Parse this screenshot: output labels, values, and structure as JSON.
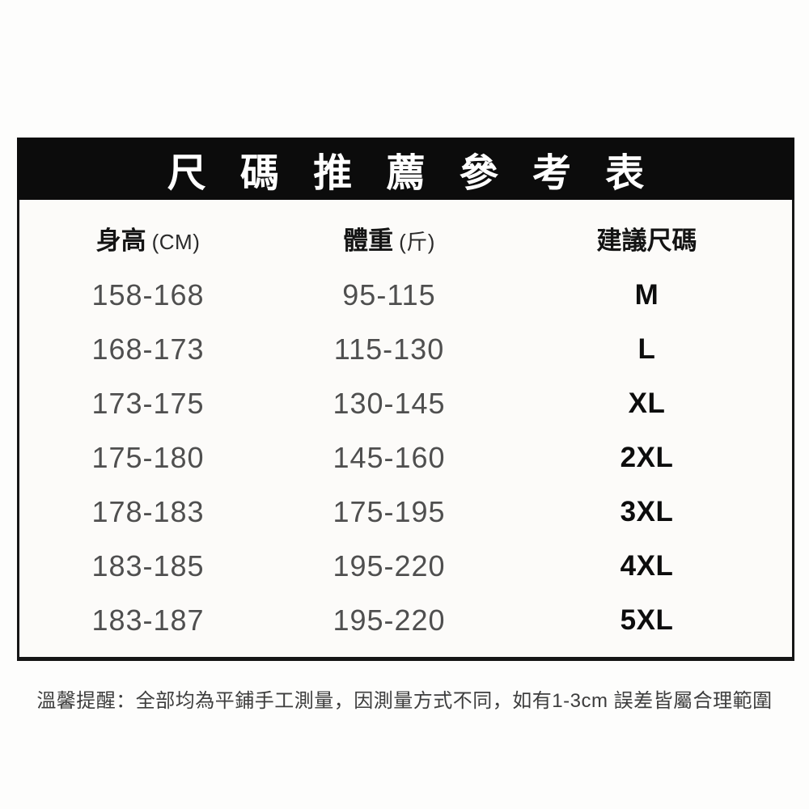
{
  "page": {
    "title": "尺碼推薦參考表",
    "columns": [
      {
        "label": "身高",
        "unit": "(CM)"
      },
      {
        "label": "體重",
        "unit": "(斤)"
      },
      {
        "label": "建議尺碼",
        "unit": ""
      }
    ],
    "rows": [
      {
        "height": "158-168",
        "weight": "95-115",
        "size": "M"
      },
      {
        "height": "168-173",
        "weight": "115-130",
        "size": "L"
      },
      {
        "height": "173-175",
        "weight": "130-145",
        "size": "XL"
      },
      {
        "height": "175-180",
        "weight": "145-160",
        "size": "2XL"
      },
      {
        "height": "178-183",
        "weight": "175-195",
        "size": "3XL"
      },
      {
        "height": "183-185",
        "weight": "195-220",
        "size": "4XL"
      },
      {
        "height": "183-187",
        "weight": "195-220",
        "size": "5XL"
      }
    ],
    "footer_note": "溫馨提醒：全部均為平鋪手工測量，因測量方式不同，如有1-3cm 誤差皆屬合理範圍",
    "colors": {
      "page_bg": "#fdfdfc",
      "banner_bg": "#0c0c0c",
      "banner_text": "#ffffff",
      "frame_border": "#161616",
      "value_text": "#4f4f4f",
      "size_text": "#0d0d0d",
      "note_text": "#3d3d3d"
    }
  },
  "chart_data": {
    "type": "table",
    "title": "尺碼推薦參考表",
    "columns": [
      "身高 (CM)",
      "體重 (斤)",
      "建議尺碼"
    ],
    "rows": [
      [
        "158-168",
        "95-115",
        "M"
      ],
      [
        "168-173",
        "115-130",
        "L"
      ],
      [
        "173-175",
        "130-145",
        "XL"
      ],
      [
        "175-180",
        "145-160",
        "2XL"
      ],
      [
        "178-183",
        "175-195",
        "3XL"
      ],
      [
        "183-185",
        "195-220",
        "4XL"
      ],
      [
        "183-187",
        "195-220",
        "5XL"
      ]
    ],
    "note": "溫馨提醒：全部均為平鋪手工測量，因測量方式不同，如有1-3cm 誤差皆屬合理範圍",
    "layout_hints": {
      "title_style": "white bold text on black banner, wide letter spacing",
      "frame": "black border on left/right/bottom of table",
      "size_column_style": "bold black",
      "range_columns_style": "medium gray"
    }
  }
}
